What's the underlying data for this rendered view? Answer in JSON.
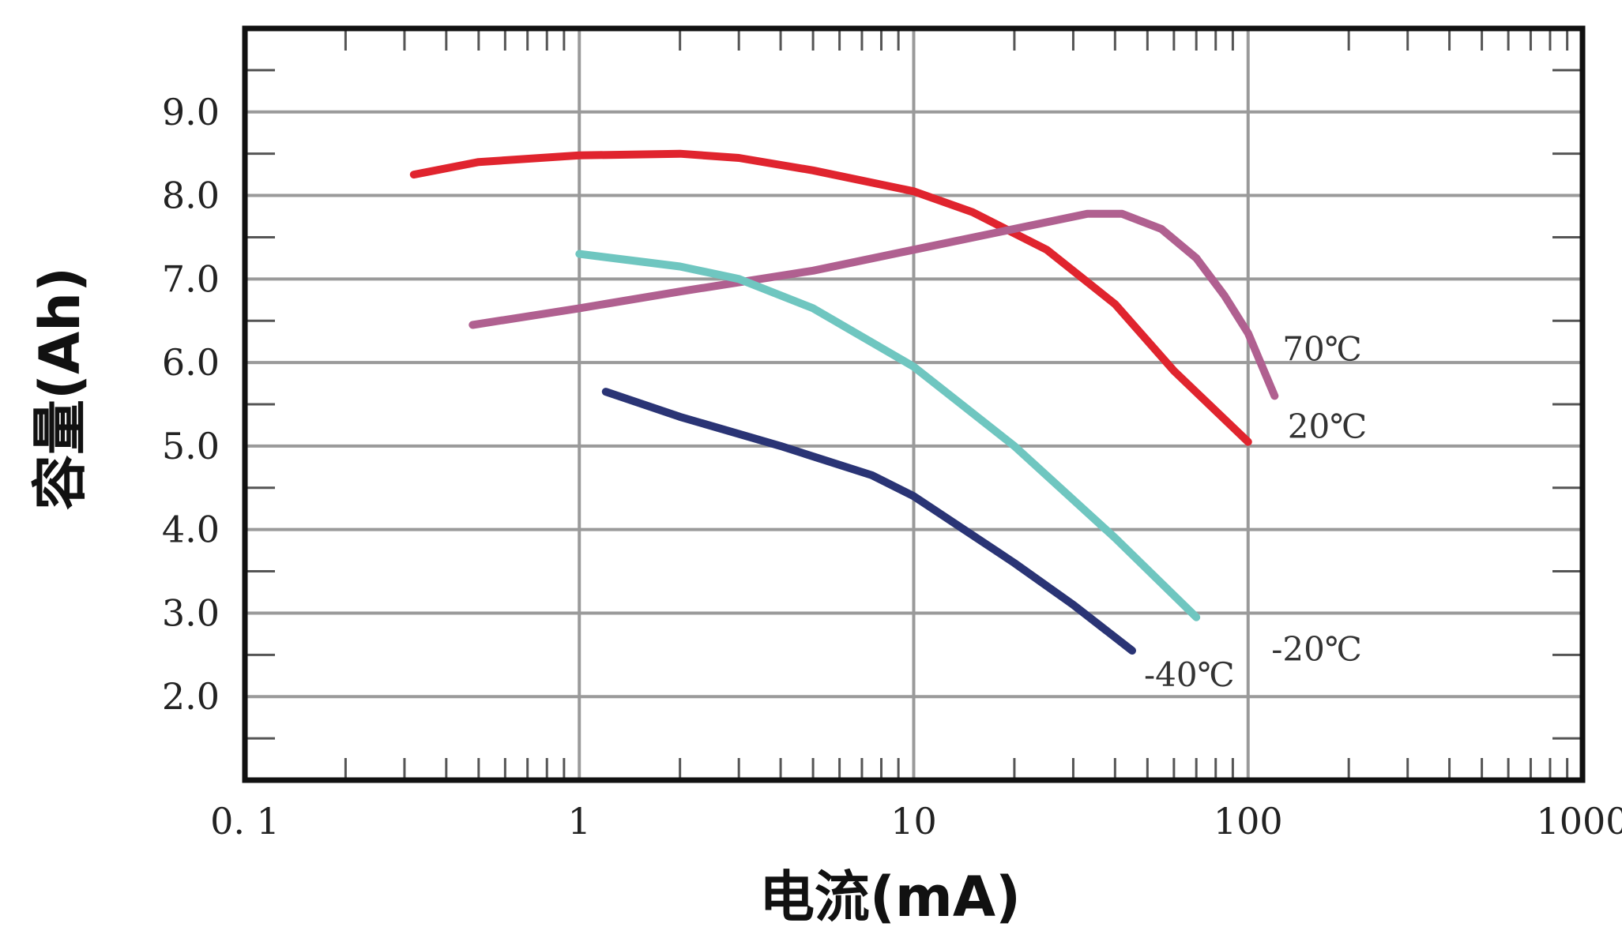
{
  "chart_data": {
    "type": "line",
    "title": "",
    "xlabel": "电流(mA)",
    "ylabel": "容量(Ah)",
    "x_scale": "log",
    "xlim": [
      0.1,
      1000
    ],
    "ylim": [
      1.0,
      10.0
    ],
    "grid": true,
    "x_ticks": [
      {
        "value": 0.1,
        "label": "0. 1"
      },
      {
        "value": 1,
        "label": "1"
      },
      {
        "value": 10,
        "label": "10"
      },
      {
        "value": 100,
        "label": "100"
      },
      {
        "value": 1000,
        "label": "1000"
      }
    ],
    "y_ticks": [
      {
        "value": 2.0,
        "label": "2.0"
      },
      {
        "value": 3.0,
        "label": "3.0"
      },
      {
        "value": 4.0,
        "label": "4.0"
      },
      {
        "value": 5.0,
        "label": "5.0"
      },
      {
        "value": 6.0,
        "label": "6.0"
      },
      {
        "value": 7.0,
        "label": "7.0"
      },
      {
        "value": 8.0,
        "label": "8.0"
      },
      {
        "value": 9.0,
        "label": "9.0"
      }
    ],
    "series": [
      {
        "name": "20℃",
        "color": "#e0242e",
        "points": [
          [
            0.32,
            8.25
          ],
          [
            0.5,
            8.4
          ],
          [
            1,
            8.48
          ],
          [
            2,
            8.5
          ],
          [
            3,
            8.45
          ],
          [
            5,
            8.3
          ],
          [
            10,
            8.05
          ],
          [
            15,
            7.8
          ],
          [
            25,
            7.35
          ],
          [
            40,
            6.7
          ],
          [
            60,
            5.9
          ],
          [
            100,
            5.05
          ]
        ]
      },
      {
        "name": "70℃",
        "color": "#b06090",
        "points": [
          [
            0.48,
            6.45
          ],
          [
            1,
            6.65
          ],
          [
            2,
            6.85
          ],
          [
            5,
            7.1
          ],
          [
            10,
            7.35
          ],
          [
            20,
            7.6
          ],
          [
            33,
            7.78
          ],
          [
            42,
            7.78
          ],
          [
            55,
            7.6
          ],
          [
            70,
            7.25
          ],
          [
            85,
            6.8
          ],
          [
            100,
            6.35
          ],
          [
            120,
            5.6
          ]
        ]
      },
      {
        "name": "-20℃",
        "color": "#6fc6c0",
        "points": [
          [
            1,
            7.3
          ],
          [
            2,
            7.15
          ],
          [
            3,
            7.0
          ],
          [
            5,
            6.65
          ],
          [
            10,
            5.95
          ],
          [
            20,
            5.0
          ],
          [
            40,
            3.9
          ],
          [
            70,
            2.95
          ]
        ]
      },
      {
        "name": "-40℃",
        "color": "#2a3475",
        "points": [
          [
            1.2,
            5.65
          ],
          [
            2,
            5.35
          ],
          [
            4,
            5.0
          ],
          [
            7.5,
            4.65
          ],
          [
            10,
            4.4
          ],
          [
            20,
            3.6
          ],
          [
            30,
            3.1
          ],
          [
            45,
            2.55
          ]
        ]
      }
    ]
  }
}
